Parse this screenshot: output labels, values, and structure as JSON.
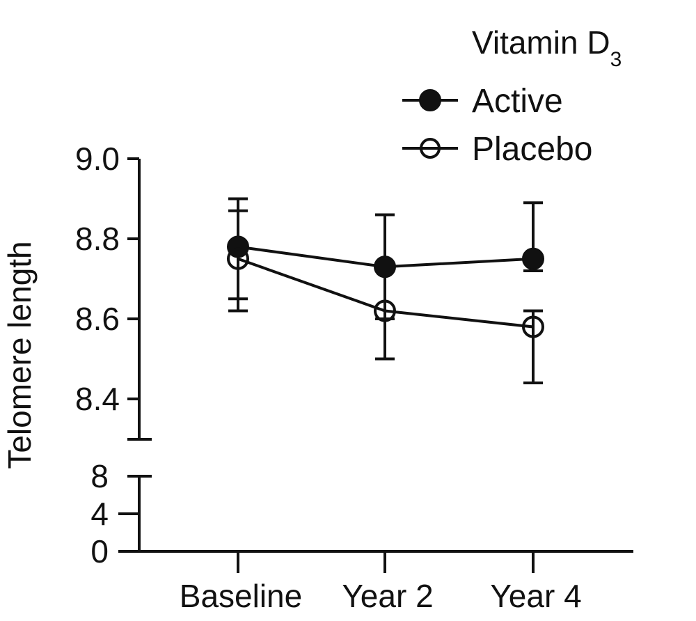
{
  "chart_data": {
    "type": "line",
    "title": "",
    "xlabel": "",
    "ylabel": "Telomere length",
    "categories": [
      "Baseline",
      "Year 2",
      "Year 4"
    ],
    "y_axis": {
      "broken": true,
      "upper_segment": {
        "range": [
          8.3,
          9.0
        ],
        "ticks": [
          "9.0",
          "8.8",
          "8.6",
          "8.4"
        ],
        "tick_values": [
          9.0,
          8.8,
          8.6,
          8.4
        ]
      },
      "lower_segment": {
        "range": [
          0,
          8
        ],
        "ticks": [
          "8",
          "4",
          "0"
        ],
        "tick_values": [
          8,
          4,
          0
        ]
      }
    },
    "grid": false,
    "legend": {
      "title": "Vitamin D",
      "title_subscript": "3",
      "placement": "top-right"
    },
    "series": [
      {
        "name": "Active",
        "marker": "filled-circle",
        "color": "#111111",
        "values": [
          8.78,
          8.73,
          8.75
        ],
        "error_upper": [
          8.9,
          8.86,
          8.89
        ],
        "error_lower": [
          8.65,
          8.6,
          8.72
        ]
      },
      {
        "name": "Placebo",
        "marker": "open-circle",
        "color": "#111111",
        "values": [
          8.75,
          8.62,
          8.58
        ],
        "error_upper": [
          8.87,
          8.74,
          8.62
        ],
        "error_lower": [
          8.62,
          8.5,
          8.44
        ]
      }
    ]
  }
}
